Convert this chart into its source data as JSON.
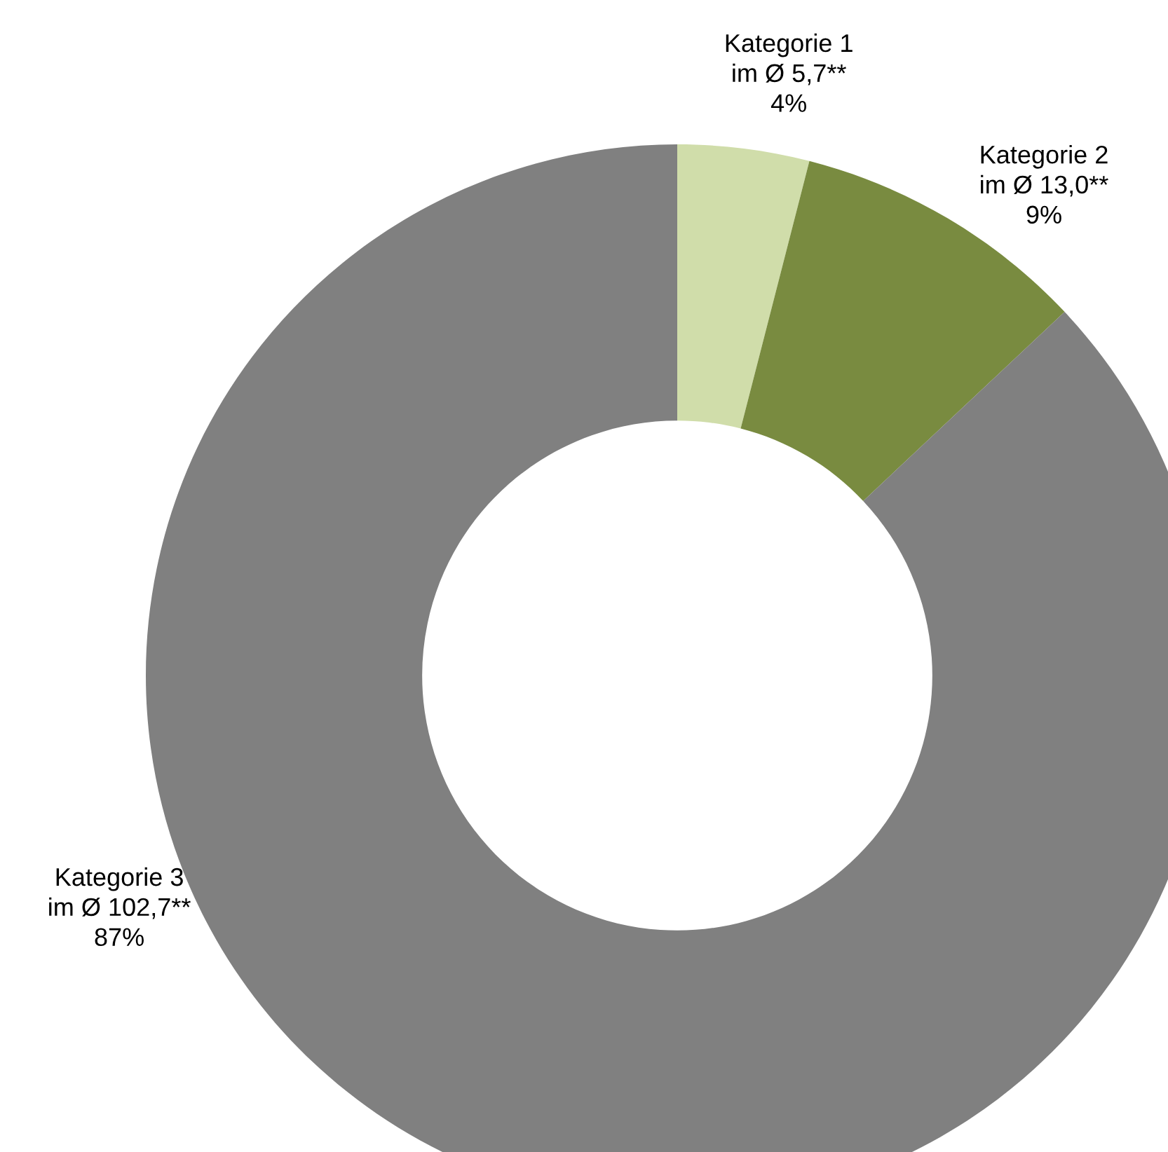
{
  "chart_data": {
    "type": "donut",
    "categories": [
      "Kategorie 1",
      "Kategorie 2",
      "Kategorie 3"
    ],
    "values": [
      4,
      9,
      87
    ],
    "value_labels": [
      "im Ø 5,7**\n4%",
      "im Ø 13,0**\n9%",
      "im Ø 102,7**\n87%"
    ],
    "colors": [
      "#d0ddaa",
      "#798b40",
      "#808080"
    ]
  }
}
